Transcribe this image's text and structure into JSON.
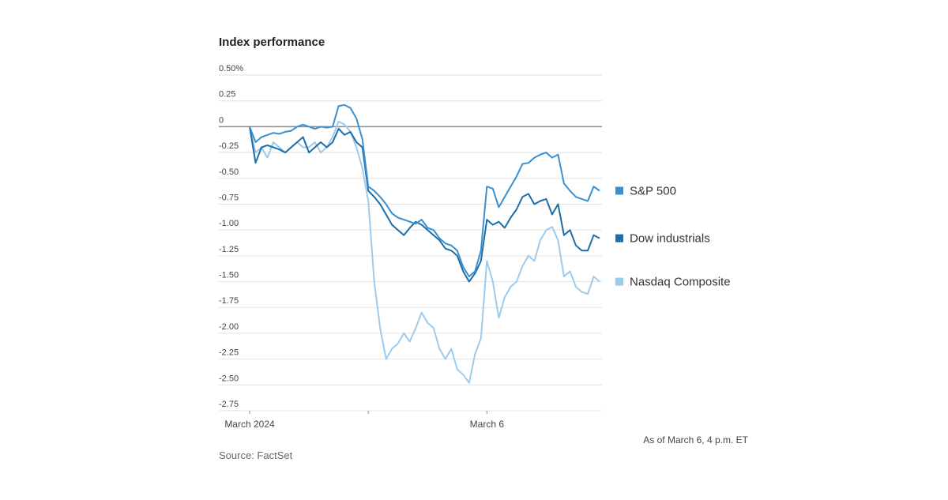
{
  "chart_data": {
    "type": "line",
    "title": "Index performance",
    "note": "As of March 6, 4 p.m. ET",
    "source": "Source: FactSet",
    "x": [
      0,
      0.05,
      0.1,
      0.15,
      0.2,
      0.25,
      0.3,
      0.35,
      0.4,
      0.45,
      0.5,
      0.55,
      0.6,
      0.65,
      0.7,
      0.75,
      0.8,
      0.85,
      0.9,
      0.95,
      1.0,
      1.05,
      1.1,
      1.15,
      1.2,
      1.25,
      1.3,
      1.35,
      1.4,
      1.45,
      1.5,
      1.55,
      1.6,
      1.65,
      1.7,
      1.75,
      1.8,
      1.85,
      1.9,
      1.95,
      2.0,
      2.05,
      2.1,
      2.15,
      2.2,
      2.25,
      2.3,
      2.35,
      2.4,
      2.45,
      2.5,
      2.55,
      2.6,
      2.65,
      2.7,
      2.75,
      2.8,
      2.85,
      2.9,
      2.95
    ],
    "series": [
      {
        "name": "S&P 500",
        "color": "#3a8fd0",
        "values": [
          0,
          -0.15,
          -0.1,
          -0.08,
          -0.06,
          -0.07,
          -0.05,
          -0.04,
          0,
          0.02,
          0,
          -0.02,
          0,
          -0.01,
          0,
          0.2,
          0.21,
          0.18,
          0.08,
          -0.12,
          -0.58,
          -0.62,
          -0.68,
          -0.75,
          -0.84,
          -0.88,
          -0.9,
          -0.92,
          -0.94,
          -0.9,
          -0.98,
          -1.0,
          -1.08,
          -1.13,
          -1.15,
          -1.2,
          -1.36,
          -1.45,
          -1.4,
          -1.2,
          -0.58,
          -0.6,
          -0.78,
          -0.68,
          -0.58,
          -0.48,
          -0.36,
          -0.35,
          -0.3,
          -0.27,
          -0.25,
          -0.3,
          -0.27,
          -0.55,
          -0.62,
          -0.68,
          -0.7,
          -0.72,
          -0.58,
          -0.62
        ]
      },
      {
        "name": "Dow industrials",
        "color": "#1f6da6",
        "values": [
          0,
          -0.35,
          -0.2,
          -0.18,
          -0.2,
          -0.22,
          -0.25,
          -0.2,
          -0.15,
          -0.1,
          -0.25,
          -0.2,
          -0.15,
          -0.2,
          -0.15,
          -0.02,
          -0.08,
          -0.05,
          -0.15,
          -0.2,
          -0.62,
          -0.68,
          -0.75,
          -0.85,
          -0.95,
          -1.0,
          -1.05,
          -0.98,
          -0.92,
          -0.95,
          -1.0,
          -1.05,
          -1.1,
          -1.18,
          -1.2,
          -1.25,
          -1.4,
          -1.5,
          -1.42,
          -1.3,
          -0.9,
          -0.95,
          -0.92,
          -0.98,
          -0.88,
          -0.8,
          -0.68,
          -0.65,
          -0.75,
          -0.72,
          -0.7,
          -0.85,
          -0.75,
          -1.05,
          -1.0,
          -1.15,
          -1.2,
          -1.2,
          -1.05,
          -1.08
        ]
      },
      {
        "name": "Nasdaq Composite",
        "color": "#9dcbec",
        "values": [
          0,
          -0.25,
          -0.2,
          -0.3,
          -0.15,
          -0.2,
          -0.25,
          -0.2,
          -0.15,
          -0.2,
          -0.2,
          -0.15,
          -0.25,
          -0.2,
          -0.1,
          0.05,
          0.02,
          -0.05,
          -0.2,
          -0.4,
          -0.72,
          -1.5,
          -1.95,
          -2.25,
          -2.15,
          -2.1,
          -2.0,
          -2.08,
          -1.95,
          -1.8,
          -1.9,
          -1.95,
          -2.15,
          -2.25,
          -2.15,
          -2.35,
          -2.4,
          -2.48,
          -2.2,
          -2.05,
          -1.3,
          -1.5,
          -1.85,
          -1.65,
          -1.55,
          -1.5,
          -1.35,
          -1.25,
          -1.3,
          -1.1,
          -1.0,
          -0.97,
          -1.1,
          -1.45,
          -1.4,
          -1.55,
          -1.6,
          -1.62,
          -1.45,
          -1.5
        ]
      }
    ],
    "xlim": [
      0,
      2.97
    ],
    "xticks": [
      {
        "value": 0,
        "label": "March 2024"
      },
      {
        "value": 1,
        "label": null
      },
      {
        "value": 2,
        "label": "March 6"
      }
    ],
    "ylim": [
      -2.75,
      0.5
    ],
    "yticks": [
      {
        "value": 0.5,
        "label": "0.50%"
      },
      0.25,
      0,
      -0.25,
      {
        "value": -0.5,
        "label": "-0.50"
      },
      -0.75,
      {
        "value": -1,
        "label": "-1.00"
      },
      -1.25,
      {
        "value": -1.5,
        "label": "-1.50"
      },
      -1.75,
      {
        "value": -2,
        "label": "-2.00"
      },
      -2.25,
      {
        "value": -2.5,
        "label": "-2.50"
      },
      -2.75
    ],
    "grid": true
  }
}
